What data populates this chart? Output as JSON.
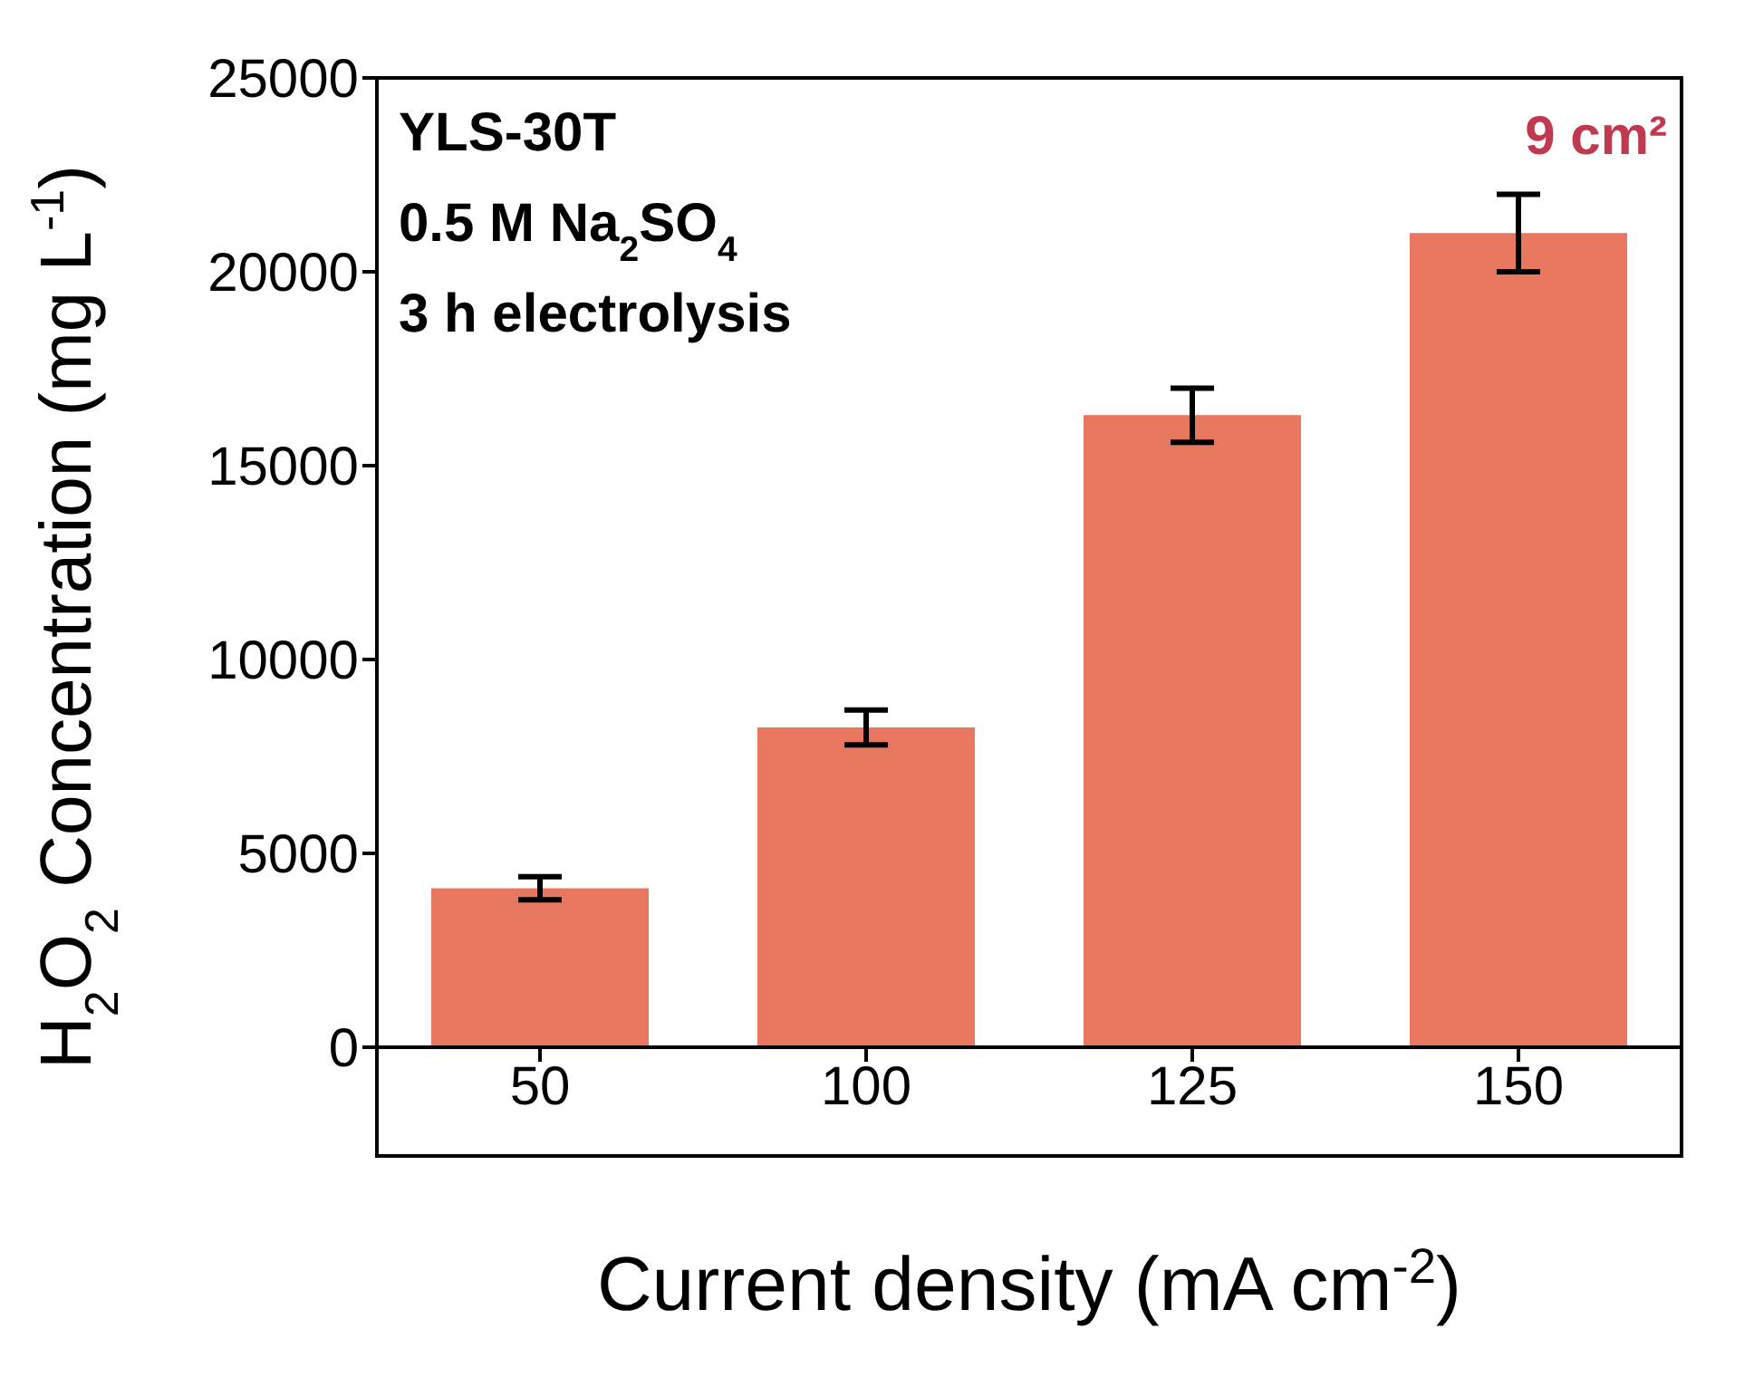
{
  "chart_data": {
    "type": "bar",
    "xlabel": "Current density (mA cm$^{-2}$)",
    "ylabel": "H$_{2}$O$_{2}$ Concentration (mg L$^{-1}$)",
    "categories": [
      "50",
      "100",
      "125",
      "150"
    ],
    "values": [
      4100,
      8250,
      16300,
      21000
    ],
    "errors": [
      300,
      450,
      700,
      1000
    ],
    "color": "#e8775f",
    "ylim": [
      0,
      25000
    ],
    "yticks": [
      0,
      5000,
      10000,
      15000,
      20000,
      25000
    ],
    "grid": false,
    "legend": false,
    "annotations": [
      "YLS-30T",
      "0.5 M Na$_{2}$SO$_{4}$",
      "3 h electrolysis",
      "9 cm²"
    ]
  }
}
